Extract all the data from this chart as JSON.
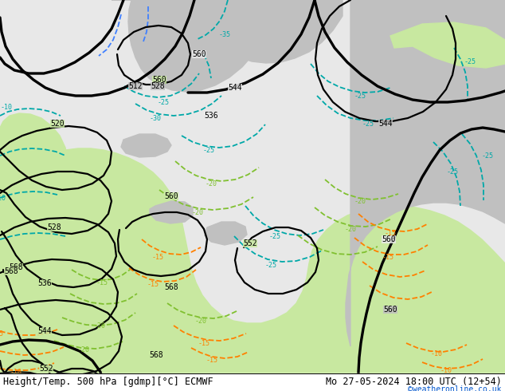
{
  "title_left": "Height/Temp. 500 hPa [gdmp][°C] ECMWF",
  "title_right": "Mo 27-05-2024 18:00 UTC (12+54)",
  "credit": "©weatheronline.co.uk",
  "bg_color": "#ffffff",
  "land_green": "#c8e8a0",
  "land_gray": "#c0c0c0",
  "sea_color": "#e8e8e8",
  "black": "#000000",
  "teal": "#00a8a8",
  "green_dash": "#80c030",
  "orange_dash": "#ff8000",
  "blue_dash": "#4080ff",
  "title_font_size": 8.5,
  "credit_font_size": 7,
  "figsize": [
    6.34,
    4.9
  ],
  "dpi": 100
}
